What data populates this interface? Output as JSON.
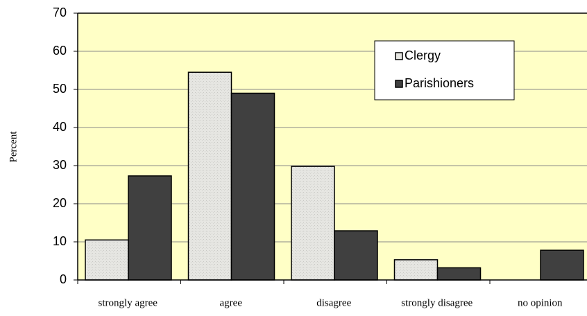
{
  "chart_data": {
    "type": "bar",
    "categories": [
      "strongly agree",
      "agree",
      "disagree",
      "strongly disagree",
      "no opinion"
    ],
    "series": [
      {
        "name": "Clergy",
        "color": "#e6e6e2",
        "values": [
          10.5,
          54.5,
          29.8,
          5.3,
          0
        ]
      },
      {
        "name": "Parishioners",
        "color": "#404040",
        "values": [
          27.3,
          49,
          12.9,
          3.2,
          7.8
        ]
      }
    ],
    "y_label": "Percent",
    "ylim": [
      0,
      70
    ],
    "yticks": [
      0,
      10,
      20,
      30,
      40,
      50,
      60,
      70
    ],
    "grid": true,
    "legend": "top-right",
    "background": "#ffffc6"
  }
}
